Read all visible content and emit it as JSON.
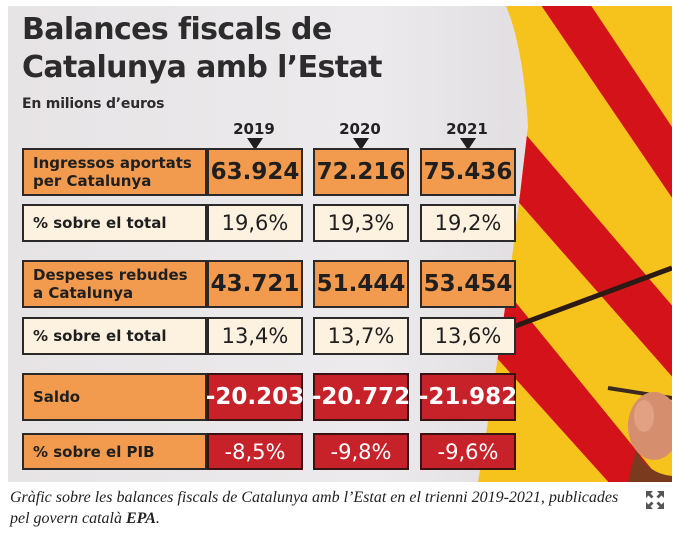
{
  "title_line1": "Balances fiscals de",
  "title_line2": "Catalunya amb l’Estat",
  "subtitle": "En milions d’euros",
  "colors": {
    "orange": "#f29a4e",
    "cream": "#fdf1df",
    "red": "#c7222a",
    "flag_yellow": "#f6c21c",
    "flag_red": "#d3121a"
  },
  "chart_data": {
    "type": "table",
    "title": "Balances fiscals de Catalunya amb l’Estat",
    "subtitle": "En milions d’euros",
    "columns": [
      "2019",
      "2020",
      "2021"
    ],
    "rows": [
      {
        "label_lines": [
          "Ingressos aportats",
          "per Catalunya"
        ],
        "values": [
          "63.924",
          "72.216",
          "75.436"
        ],
        "style": "orange"
      },
      {
        "label_lines": [
          "% sobre el total"
        ],
        "values": [
          "19,6%",
          "19,3%",
          "19,2%"
        ],
        "style": "cream"
      },
      {
        "label_lines": [
          "Despeses rebudes",
          "a Catalunya"
        ],
        "values": [
          "43.721",
          "51.444",
          "53.454"
        ],
        "style": "orange"
      },
      {
        "label_lines": [
          "% sobre el total"
        ],
        "values": [
          "13,4%",
          "13,7%",
          "13,6%"
        ],
        "style": "cream"
      },
      {
        "label_lines": [
          "Saldo"
        ],
        "values": [
          "-20.203",
          "-20.772",
          "-21.982"
        ],
        "style": "red"
      },
      {
        "label_lines": [
          "% sobre el PIB"
        ],
        "values": [
          "-8,5%",
          "-9,8%",
          "-9,6%"
        ],
        "style": "red"
      }
    ]
  },
  "caption": {
    "text": "Gràfic sobre les balances fiscals de Catalunya amb l’Estat en el trienni 2019-2021, publicades pel govern català ",
    "source": "EPA",
    "end": "."
  },
  "expand_icon": "expand-icon"
}
